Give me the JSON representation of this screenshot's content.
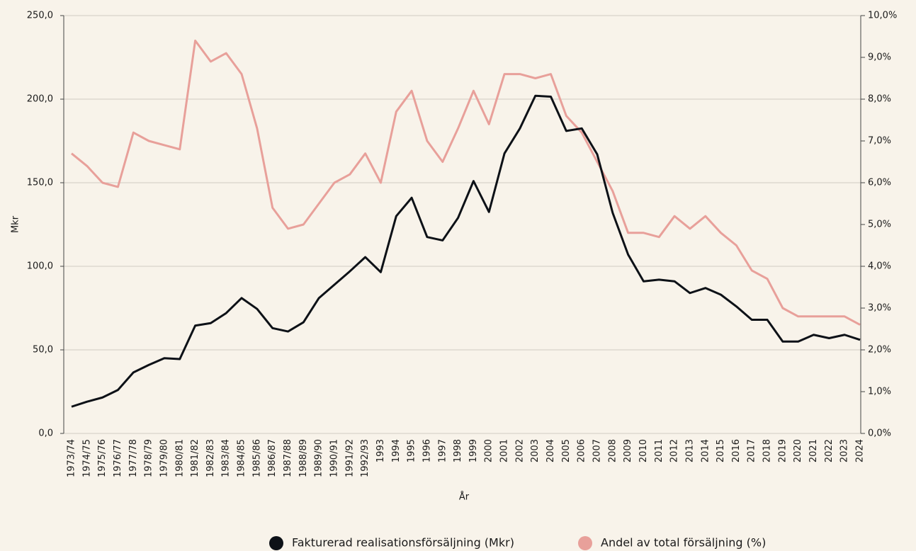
{
  "chart_data": {
    "type": "line",
    "xlabel": "År",
    "ylabel": "Mkr",
    "categories": [
      "1973/74",
      "1974/75",
      "1975/76",
      "1976/77",
      "1977/78",
      "1978/79",
      "1979/80",
      "1980/81",
      "1981/82",
      "1982/83",
      "1983/84",
      "1984/85",
      "1985/86",
      "1986/87",
      "1987/88",
      "1988/89",
      "1989/90",
      "1990/91",
      "1991/92",
      "1992/93",
      "1993",
      "1994",
      "1995",
      "1996",
      "1997",
      "1998",
      "1999",
      "2000",
      "2001",
      "2002",
      "2003",
      "2004",
      "2005",
      "2006",
      "2007",
      "2008",
      "2009",
      "2010",
      "2011",
      "2012",
      "2013",
      "2014",
      "2015",
      "2016",
      "2017",
      "2018",
      "2019",
      "2020",
      "2021",
      "2022",
      "2023",
      "2024"
    ],
    "series": [
      {
        "name": "Fakturerad realisationsförsäljning (Mkr)",
        "color": "#0d1117",
        "axis": "y",
        "values": [
          16,
          19,
          21.5,
          26,
          36.5,
          41,
          45,
          44.5,
          64.5,
          66,
          72,
          81,
          74.5,
          63,
          61,
          66.5,
          81,
          89,
          97,
          105.5,
          96.5,
          130,
          141,
          117.5,
          115.5,
          129,
          151,
          132.5,
          167.5,
          182.5,
          202,
          201.5,
          181,
          182.5,
          167,
          132,
          107,
          91,
          92,
          91,
          84,
          87,
          83,
          76,
          68,
          68,
          55,
          55,
          59,
          57,
          59,
          56
        ]
      },
      {
        "name": "Andel av total försäljning (%)",
        "color": "#e8a09a",
        "axis": "y2",
        "values": [
          6.7,
          6.4,
          6.0,
          5.9,
          7.2,
          7.0,
          6.9,
          6.8,
          9.4,
          8.9,
          9.1,
          8.6,
          7.3,
          5.4,
          4.9,
          5.0,
          5.5,
          6.0,
          6.2,
          6.7,
          6.0,
          7.7,
          8.2,
          7.0,
          6.5,
          7.3,
          8.2,
          7.4,
          8.6,
          8.6,
          8.5,
          8.6,
          7.6,
          7.2,
          6.5,
          5.8,
          4.8,
          4.8,
          4.7,
          5.2,
          4.9,
          5.2,
          4.8,
          4.5,
          3.9,
          3.7,
          3.0,
          2.8,
          2.8,
          2.8,
          2.8,
          2.6
        ]
      }
    ],
    "ylim": [
      0,
      250
    ],
    "yticks": [
      {
        "value": 0,
        "label": "0,0"
      },
      {
        "value": 50,
        "label": "50,0"
      },
      {
        "value": 100,
        "label": "100,0"
      },
      {
        "value": 150,
        "label": "150,0"
      },
      {
        "value": 200,
        "label": "200,0"
      },
      {
        "value": 250,
        "label": "250,0"
      }
    ],
    "y2lim": [
      0,
      10
    ],
    "y2ticks": [
      {
        "value": 0,
        "label": "0,0%"
      },
      {
        "value": 1,
        "label": "1,0%"
      },
      {
        "value": 2,
        "label": "2,0%"
      },
      {
        "value": 3,
        "label": "3,0%"
      },
      {
        "value": 4,
        "label": "4,0%"
      },
      {
        "value": 5,
        "label": "5,0%"
      },
      {
        "value": 6,
        "label": "6,0%"
      },
      {
        "value": 7,
        "label": "7,0%"
      },
      {
        "value": 8,
        "label": "8,0%"
      },
      {
        "value": 9,
        "label": "9,0%"
      },
      {
        "value": 10,
        "label": "10,0%"
      }
    ],
    "grid": true,
    "legend": "bottom"
  }
}
